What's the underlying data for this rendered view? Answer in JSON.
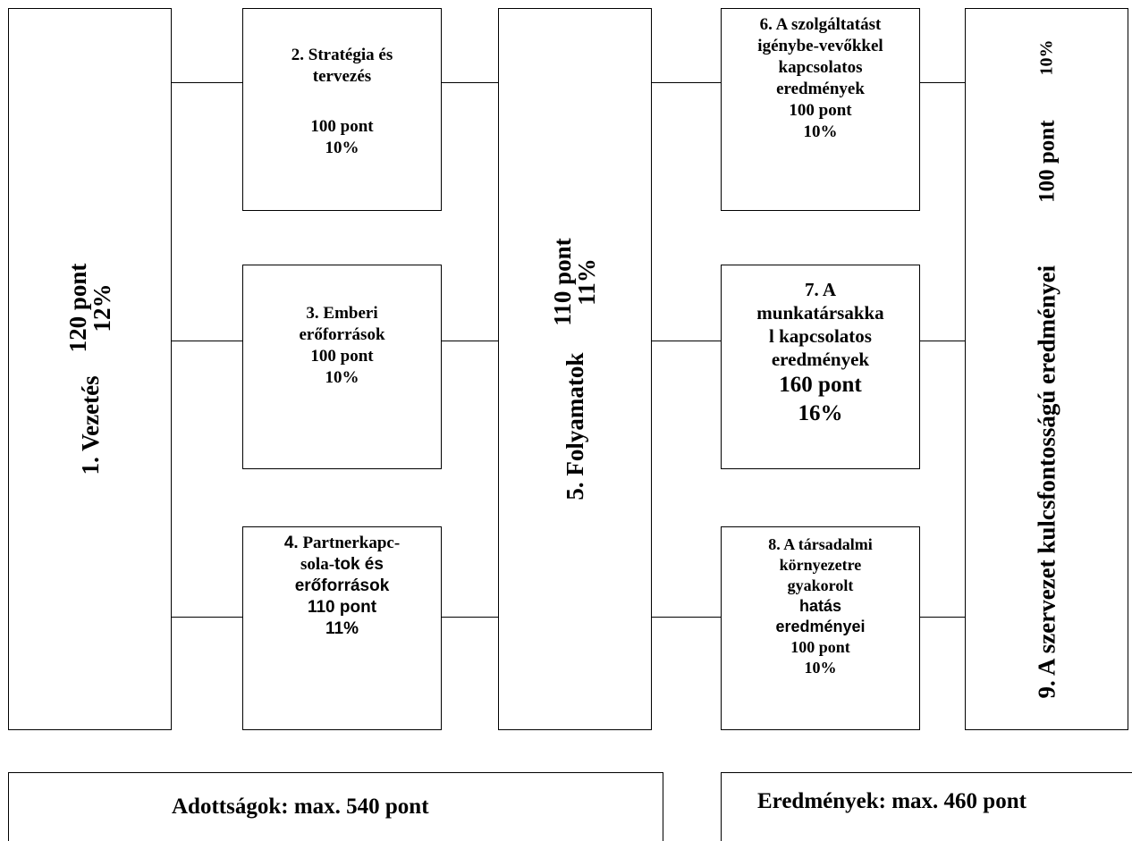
{
  "box1": {
    "title": "1. Vezetés",
    "points": "120 pont",
    "percent": "12%"
  },
  "box2": {
    "title_1": "2. Stratégia és",
    "title_2": "tervezés",
    "points": "100 pont",
    "percent": "10%"
  },
  "box3": {
    "title_1": "3. Emberi",
    "title_2": "erőforrások",
    "points": "100 pont",
    "percent": "10%"
  },
  "box4": {
    "title_num": "4.",
    "title_1": " Partnerkapc-",
    "title_2a": "sola-",
    "title_2b": "tok és",
    "title_3": "erőforrások",
    "points": "110 pont",
    "percent": "11%"
  },
  "box5": {
    "title": "5. Folyamatok",
    "points": "110 pont",
    "percent": "11%"
  },
  "box6": {
    "title_1": "6. A szolgáltatást",
    "title_2": "igénybe-vevőkkel",
    "title_3": "kapcsolatos",
    "title_4": "eredmények",
    "points": "100 pont",
    "percent": "10%"
  },
  "box7": {
    "title_1": "7. A",
    "title_2": "munkatársakka",
    "title_3": "l kapcsolatos",
    "title_4": "eredmények",
    "points": "160 pont",
    "percent": "16%"
  },
  "box8": {
    "title_1": "8. A társadalmi",
    "title_2": "környezetre",
    "title_3": "gyakorolt",
    "title_4": "hatás",
    "title_5": "eredményei",
    "points": "100 pont",
    "percent": "10%"
  },
  "box9": {
    "title": "9. A szervezet kulcsfontosságú eredményei",
    "points": "100 pont",
    "percent": "10%"
  },
  "summary": {
    "enablers": "Adottságok: max. 540 pont",
    "results": "Eredmények: max. 460 pont"
  }
}
